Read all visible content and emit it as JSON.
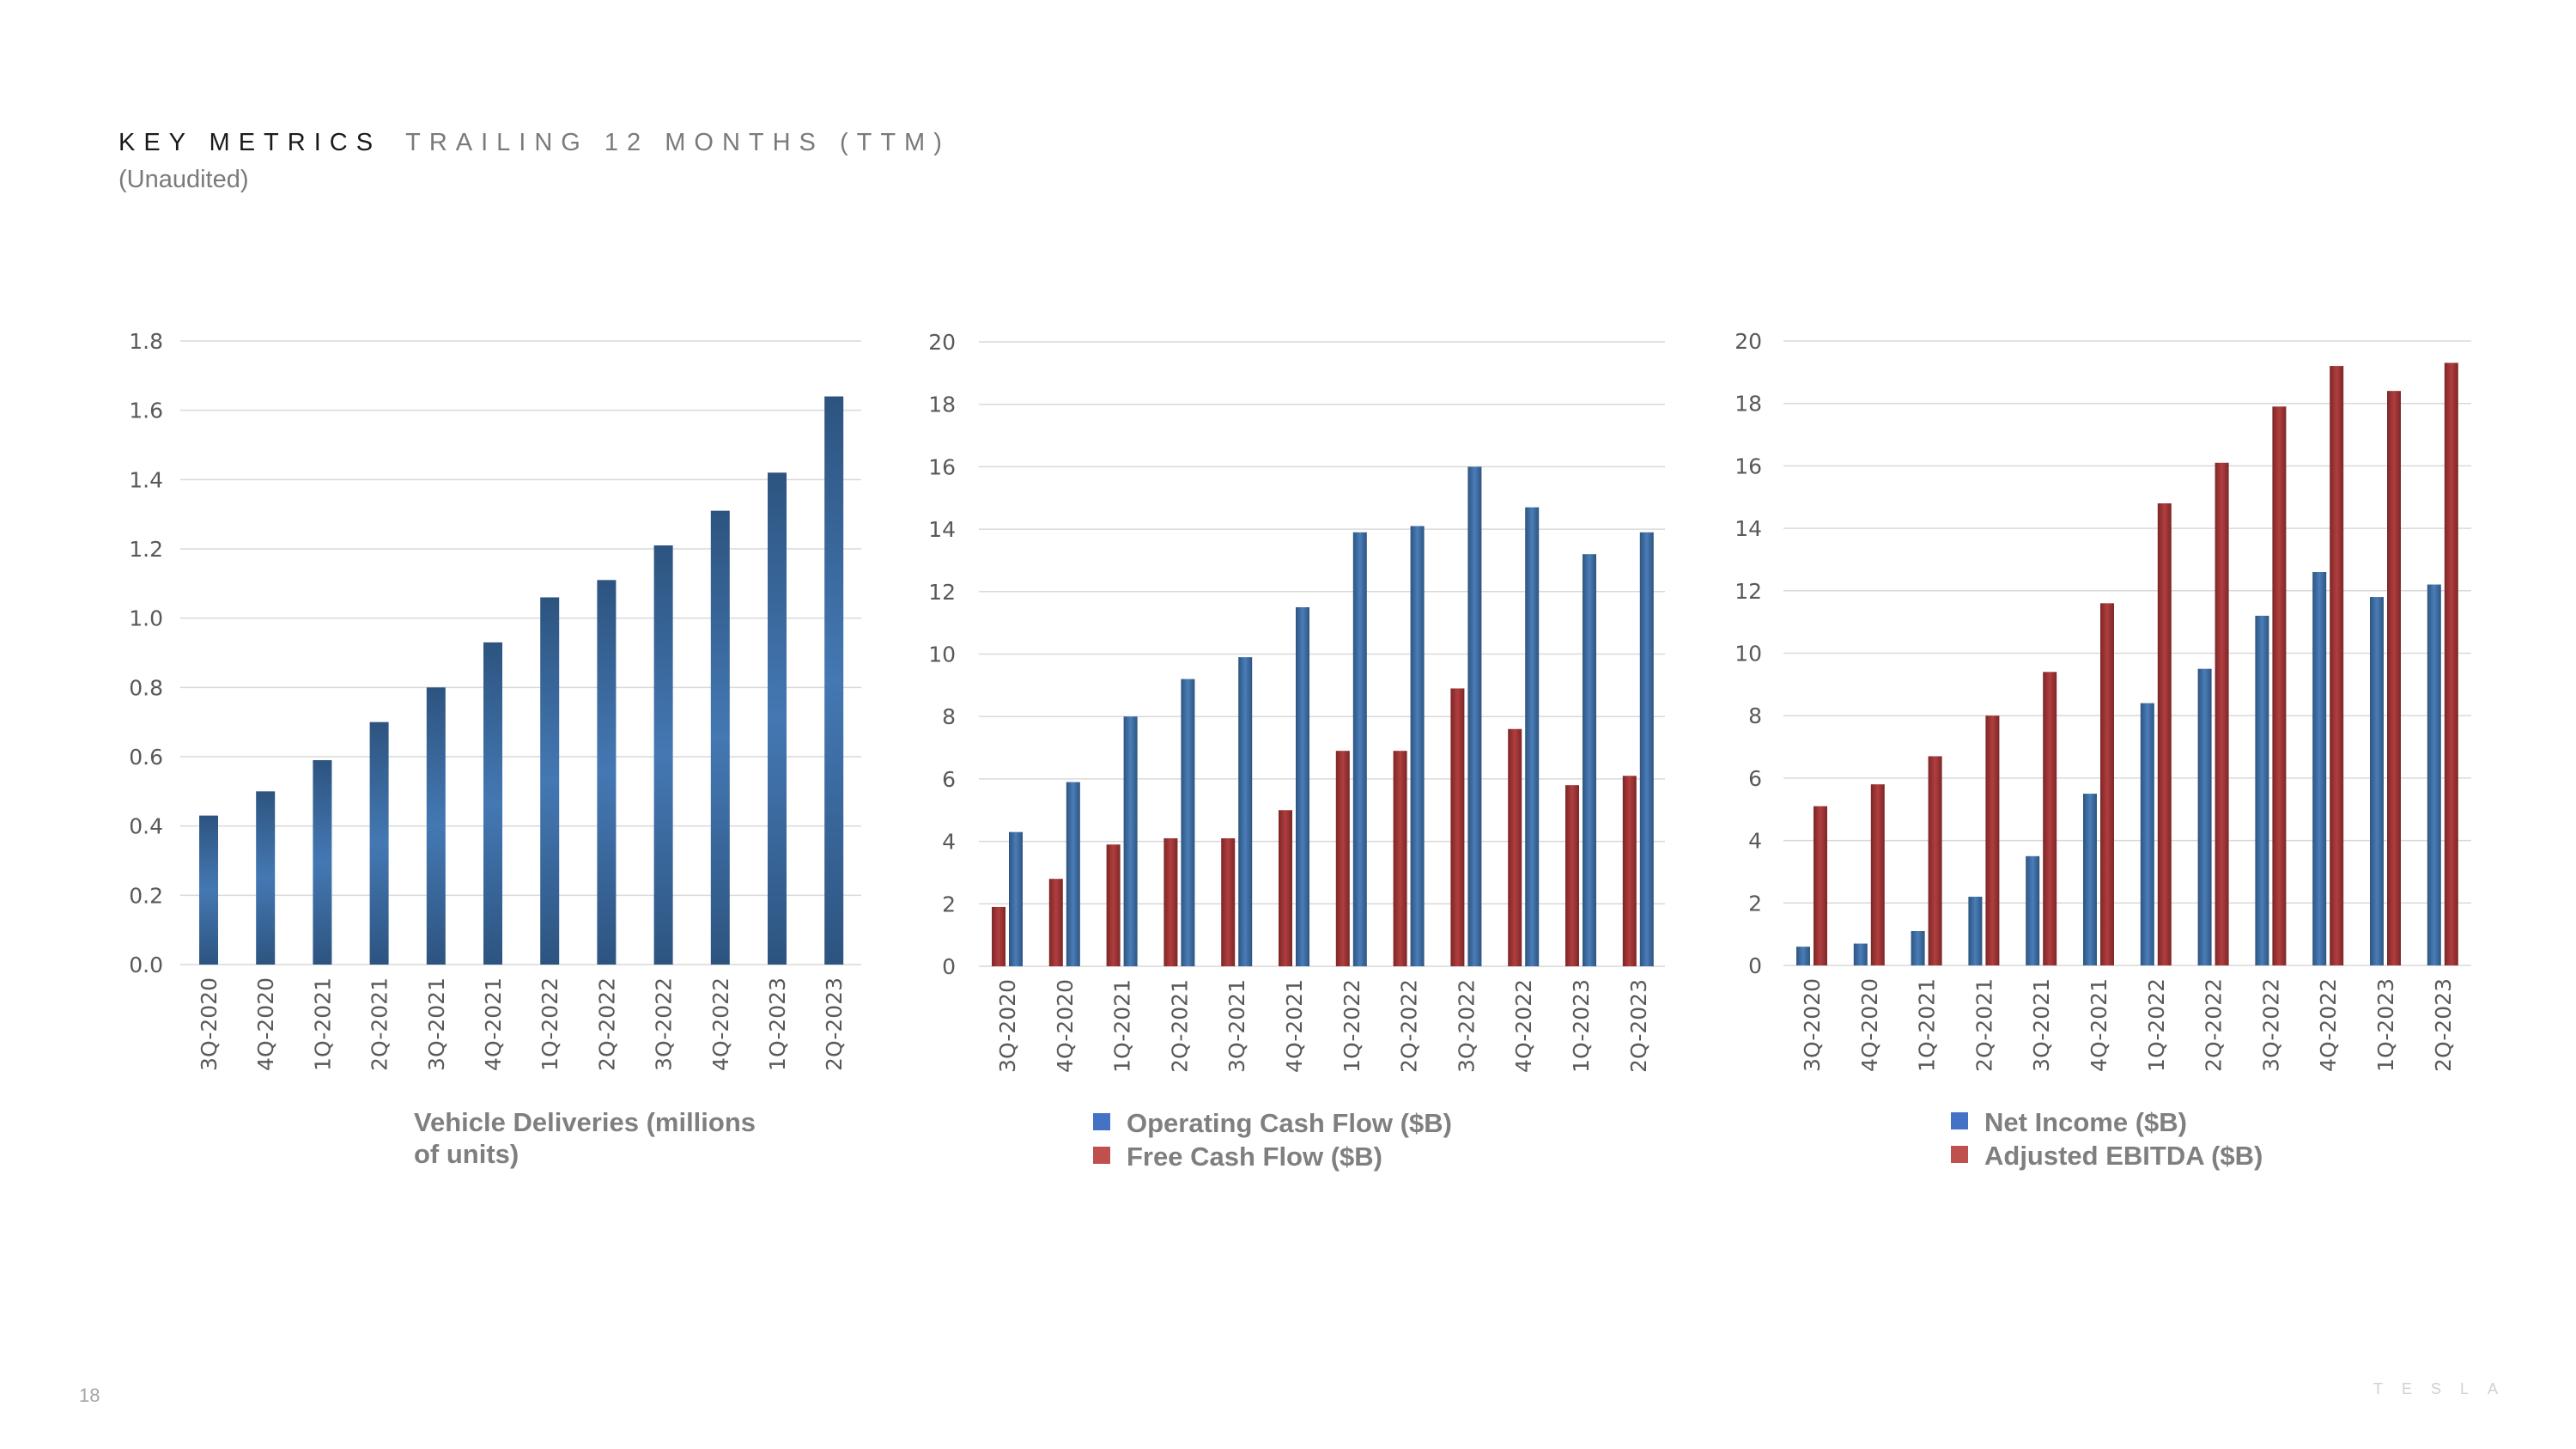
{
  "header": {
    "title_strong": "KEY METRICS",
    "title_light": "TRAILING 12 MONTHS (TTM)",
    "subtitle": "(Unaudited)"
  },
  "footer": {
    "page_number": "18",
    "logo_text": "TESLA"
  },
  "colors": {
    "blue": "#3E6FA8",
    "blue_dark": "#2D5480",
    "red": "#A8393A",
    "red_dark": "#7D2626",
    "grid": "#d9d9d9"
  },
  "chart_data": [
    {
      "id": "deliveries",
      "type": "bar",
      "categories": [
        "3Q-2020",
        "4Q-2020",
        "1Q-2021",
        "2Q-2021",
        "3Q-2021",
        "4Q-2021",
        "1Q-2022",
        "2Q-2022",
        "3Q-2022",
        "4Q-2022",
        "1Q-2023",
        "2Q-2023"
      ],
      "yticks": [
        "0.0",
        "0.2",
        "0.4",
        "0.6",
        "0.8",
        "1.0",
        "1.2",
        "1.4",
        "1.6",
        "1.8"
      ],
      "ylim": [
        0,
        1.8
      ],
      "series": [
        {
          "name": "Vehicle Deliveries (millions of units)",
          "color": "blue",
          "values": [
            0.43,
            0.5,
            0.59,
            0.7,
            0.8,
            0.93,
            1.06,
            1.11,
            1.21,
            1.31,
            1.42,
            1.64
          ]
        }
      ],
      "legend": {
        "style": "caption",
        "lines": [
          "Vehicle Deliveries (millions",
          "of units)"
        ]
      }
    },
    {
      "id": "cashflow",
      "type": "bar",
      "categories": [
        "3Q-2020",
        "4Q-2020",
        "1Q-2021",
        "2Q-2021",
        "3Q-2021",
        "4Q-2021",
        "1Q-2022",
        "2Q-2022",
        "3Q-2022",
        "4Q-2022",
        "1Q-2023",
        "2Q-2023"
      ],
      "yticks": [
        "0",
        "2",
        "4",
        "6",
        "8",
        "10",
        "12",
        "14",
        "16",
        "18",
        "20"
      ],
      "ylim": [
        0,
        20
      ],
      "series": [
        {
          "name": "Free Cash Flow ($B)",
          "color": "red",
          "values": [
            1.9,
            2.8,
            3.9,
            4.1,
            4.1,
            5.0,
            6.9,
            6.9,
            8.9,
            7.6,
            5.8,
            6.1
          ]
        },
        {
          "name": "Operating Cash Flow ($B)",
          "color": "blue",
          "values": [
            4.3,
            5.9,
            8.0,
            9.2,
            9.9,
            11.5,
            13.9,
            14.1,
            16.0,
            14.7,
            13.2,
            13.9
          ]
        }
      ],
      "legend": {
        "style": "swatch",
        "order": [
          1,
          0
        ]
      }
    },
    {
      "id": "income",
      "type": "bar",
      "categories": [
        "3Q-2020",
        "4Q-2020",
        "1Q-2021",
        "2Q-2021",
        "3Q-2021",
        "4Q-2021",
        "1Q-2022",
        "2Q-2022",
        "3Q-2022",
        "4Q-2022",
        "1Q-2023",
        "2Q-2023"
      ],
      "yticks": [
        "0",
        "2",
        "4",
        "6",
        "8",
        "10",
        "12",
        "14",
        "16",
        "18",
        "20"
      ],
      "ylim": [
        0,
        20
      ],
      "series": [
        {
          "name": "Net Income ($B)",
          "color": "blue",
          "values": [
            0.6,
            0.7,
            1.1,
            2.2,
            3.5,
            5.5,
            8.4,
            9.5,
            11.2,
            12.6,
            11.8,
            12.2
          ]
        },
        {
          "name": "Adjusted EBITDA ($B)",
          "color": "red",
          "values": [
            5.1,
            5.8,
            6.7,
            8.0,
            9.4,
            11.6,
            14.8,
            16.1,
            17.9,
            19.2,
            18.4,
            19.3
          ]
        }
      ],
      "legend": {
        "style": "swatch",
        "order": [
          0,
          1
        ]
      }
    }
  ]
}
